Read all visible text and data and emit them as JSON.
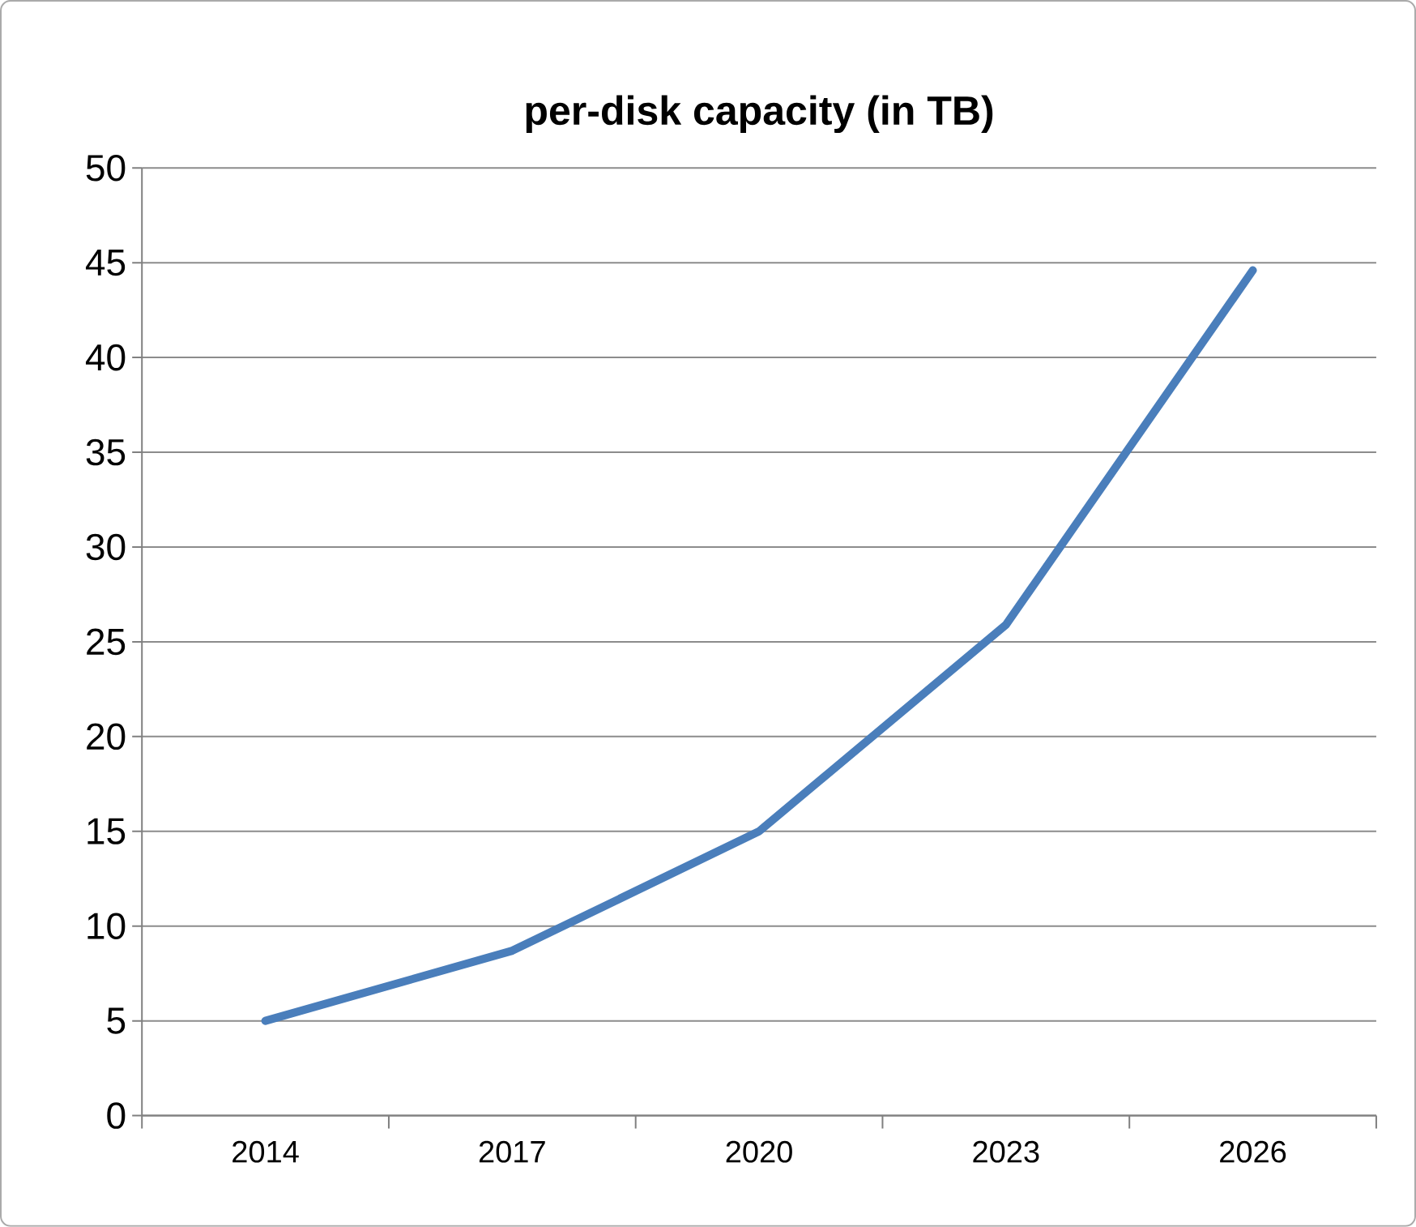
{
  "chart_data": {
    "type": "line",
    "title": "per-disk capacity (in TB)",
    "categories": [
      "2014",
      "2017",
      "2020",
      "2023",
      "2026"
    ],
    "series": [
      {
        "color": "#4a7ebb",
        "values": [
          5,
          8.7,
          15,
          25.9,
          44.6
        ]
      }
    ],
    "ylim": [
      0,
      50
    ],
    "yticks": [
      0,
      5,
      10,
      15,
      20,
      25,
      30,
      35,
      40,
      45,
      50
    ],
    "grid": "y",
    "legend": false,
    "marker": "none",
    "line_style": "solid"
  }
}
